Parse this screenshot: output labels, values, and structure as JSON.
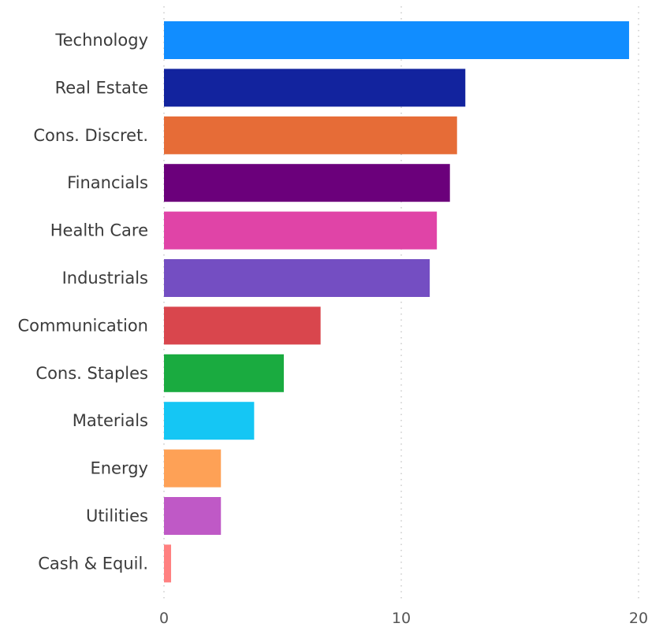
{
  "chart_data": {
    "type": "bar",
    "orientation": "horizontal",
    "categories": [
      "Technology",
      "Real Estate",
      "Cons. Discret.",
      "Financials",
      "Health Care",
      "Industrials",
      "Communication",
      "Cons. Staples",
      "Materials",
      "Energy",
      "Utilities",
      "Cash & Equil."
    ],
    "values": [
      19.6,
      12.7,
      12.35,
      12.05,
      11.5,
      11.2,
      6.6,
      5.05,
      3.8,
      2.4,
      2.4,
      0.3
    ],
    "colors": [
      "#118dff",
      "#12239e",
      "#e66c37",
      "#6b007b",
      "#e044a7",
      "#744ec2",
      "#d9464d",
      "#1aab40",
      "#15c6f4",
      "#fea156",
      "#bf59c6",
      "#ff8080"
    ],
    "xlim": [
      0,
      20
    ],
    "xticks": [
      0,
      10,
      20
    ],
    "xtick_labels": [
      "0",
      "10",
      "20"
    ],
    "grid": true,
    "title": "",
    "xlabel": "",
    "ylabel": ""
  }
}
